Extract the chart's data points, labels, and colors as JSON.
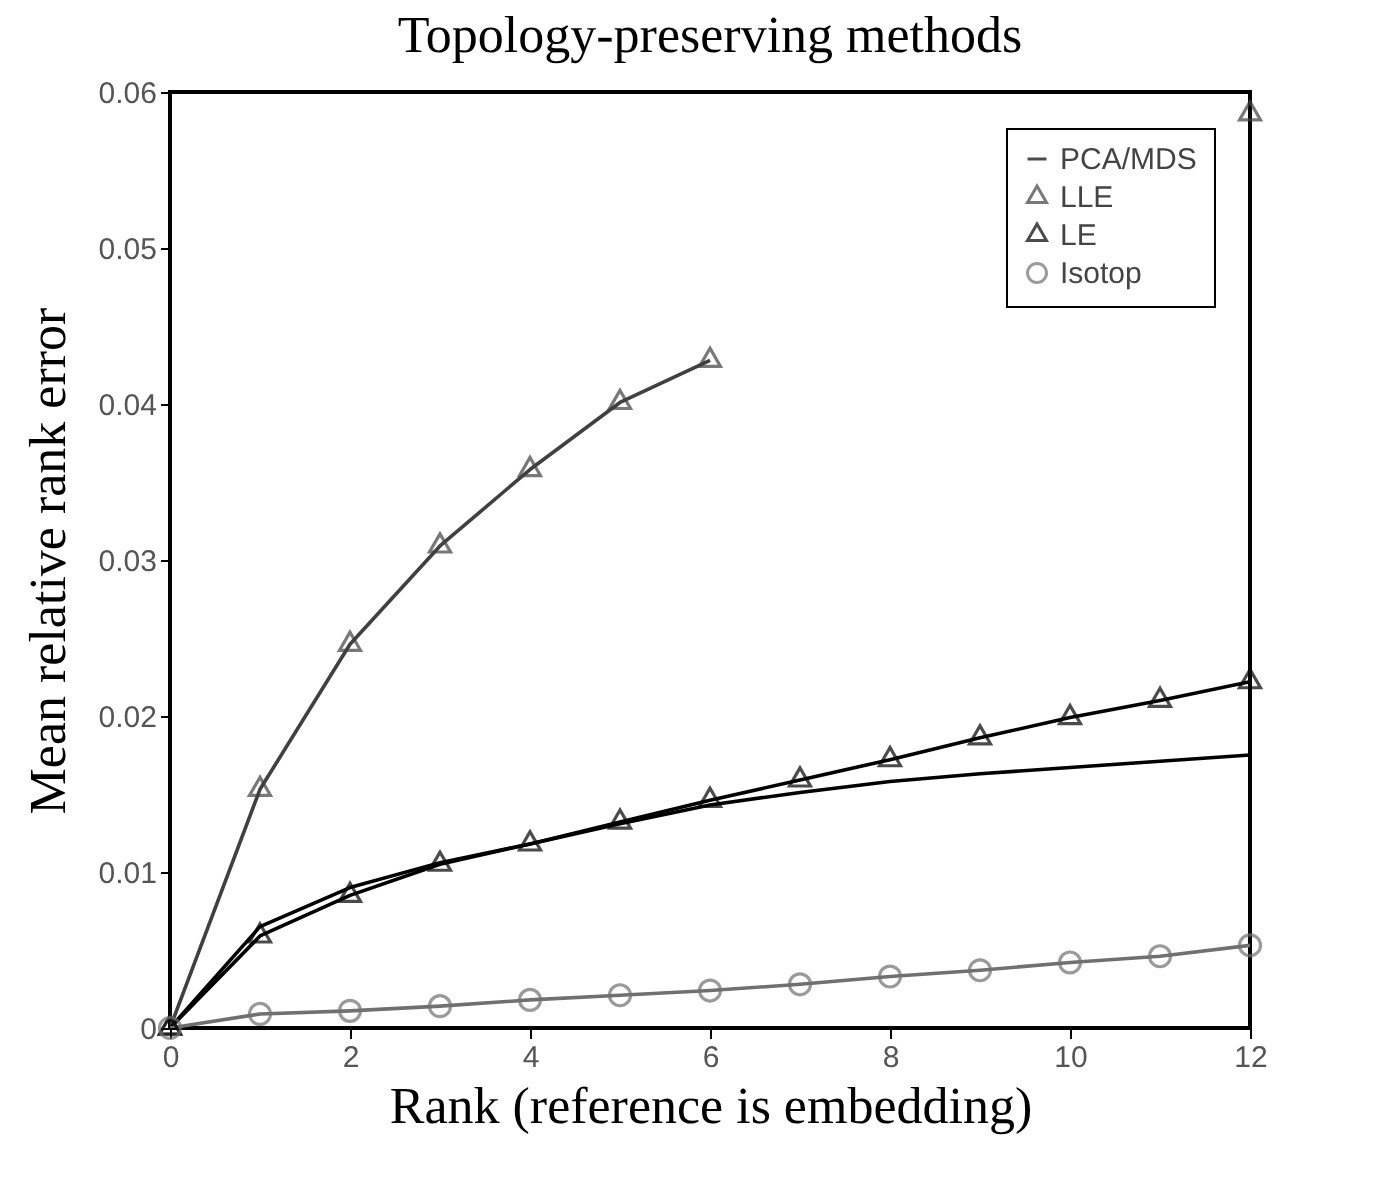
{
  "chart_data": {
    "type": "line",
    "title": "Topology-preserving methods",
    "xlabel": "Rank (reference is embedding)",
    "ylabel": "Mean relative rank error",
    "x": [
      0,
      1,
      2,
      3,
      4,
      5,
      6,
      7,
      8,
      9,
      10,
      11,
      12
    ],
    "series": [
      {
        "name": "PCA/MDS",
        "color": "#000000",
        "marker": "none",
        "values": [
          0,
          0.0065,
          0.009,
          0.0106,
          0.0118,
          0.0131,
          0.0143,
          0.0151,
          0.0158,
          0.0163,
          0.0167,
          0.0171,
          0.0175
        ]
      },
      {
        "name": "LLE",
        "color": "#404040",
        "marker": "triangle",
        "values": [
          0,
          0.0153,
          0.0246,
          0.0309,
          0.0358,
          0.0401,
          0.0428,
          null,
          null,
          null,
          null,
          null,
          0.0586
        ]
      },
      {
        "name": "LE",
        "color": "#000000",
        "marker": "triangle",
        "values": [
          0,
          0.0059,
          0.0085,
          0.0105,
          0.0118,
          0.0132,
          0.0146,
          0.0159,
          0.0172,
          0.0186,
          0.0199,
          0.021,
          0.0222
        ]
      },
      {
        "name": "Isotop",
        "color": "#707070",
        "marker": "circle",
        "values": [
          0,
          0.0009,
          0.0011,
          0.0014,
          0.0018,
          0.0021,
          0.0024,
          0.0028,
          0.0033,
          0.0037,
          0.0042,
          0.0046,
          0.0053
        ]
      }
    ],
    "xlim": [
      0,
      12
    ],
    "xticks": [
      0,
      2,
      4,
      6,
      8,
      10,
      12
    ],
    "ylim": [
      0,
      0.06
    ],
    "yticks": [
      0,
      0.01,
      0.02,
      0.03,
      0.04,
      0.05,
      0.06
    ],
    "grid": false,
    "legend": "top right"
  }
}
